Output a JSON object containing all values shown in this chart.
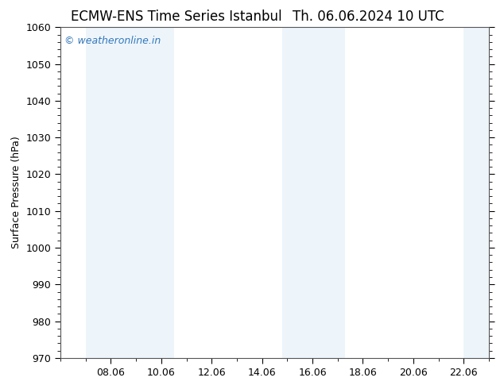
{
  "title_left": "ECMW-ENS Time Series Istanbul",
  "title_right": "Th. 06.06.2024 10 UTC",
  "ylabel": "Surface Pressure (hPa)",
  "ylim": [
    970,
    1060
  ],
  "yticks": [
    970,
    980,
    990,
    1000,
    1010,
    1020,
    1030,
    1040,
    1050,
    1060
  ],
  "xtick_labels": [
    "08.06",
    "10.06",
    "12.06",
    "14.06",
    "16.06",
    "18.06",
    "20.06",
    "22.06"
  ],
  "xtick_positions": [
    8,
    10,
    12,
    14,
    16,
    18,
    20,
    22
  ],
  "xlim": [
    6.0,
    23.0
  ],
  "shaded_bands": [
    {
      "xmin": 7.0,
      "xmax": 8.5,
      "alpha": 0.35
    },
    {
      "xmin": 8.5,
      "xmax": 10.5,
      "alpha": 0.35
    },
    {
      "xmin": 14.8,
      "xmax": 16.0,
      "alpha": 0.35
    },
    {
      "xmin": 16.0,
      "xmax": 17.3,
      "alpha": 0.35
    },
    {
      "xmin": 22.0,
      "xmax": 23.0,
      "alpha": 0.35
    }
  ],
  "shade_color": "#cce5f5",
  "background_color": "#ffffff",
  "watermark_text": "© weatheronline.in",
  "watermark_color": "#3377bb",
  "watermark_fontsize": 9,
  "title_fontsize": 12,
  "axis_fontsize": 9,
  "ylabel_fontsize": 9
}
